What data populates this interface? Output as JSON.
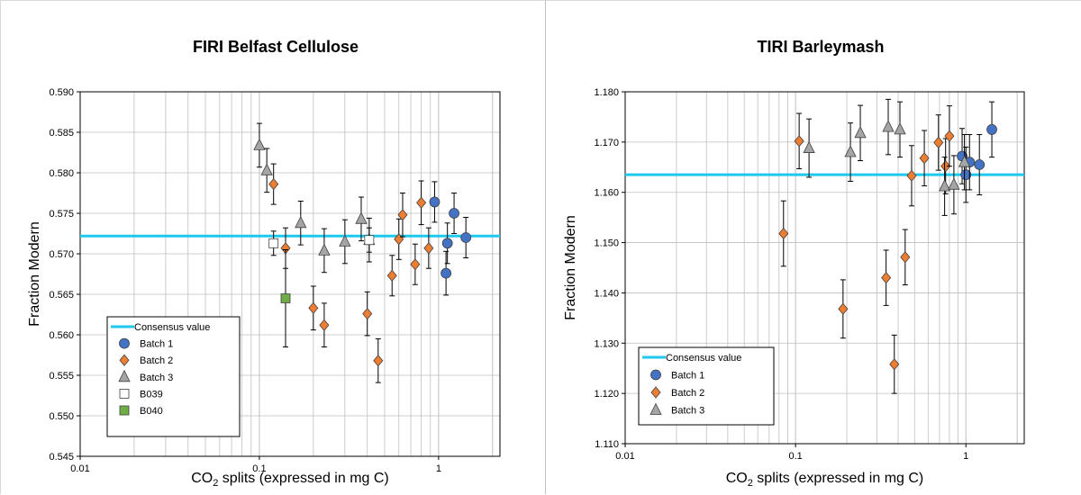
{
  "colors": {
    "consensus": "#1ec8ec",
    "batch1": "#4472c4",
    "batch2": "#ed7d31",
    "batch3": "#a5a5a5",
    "b039": "#ffffff",
    "b040": "#70ad47",
    "grid": "#bfbfbf"
  },
  "chart_data": [
    {
      "type": "scatter",
      "title": "FIRI Belfast Cellulose",
      "xlabel": "CO",
      "xlabel_sub": "2",
      "xlabel_rest": " splits (expressed in mg C)",
      "ylabel": "Fraction Modern",
      "xscale": "log",
      "xlim": [
        0.01,
        2.2
      ],
      "ylim": [
        0.545,
        0.59
      ],
      "xticks": [
        0.01,
        0.1,
        1
      ],
      "xtick_labels": [
        "0.01",
        "0.1",
        "1"
      ],
      "yticks": [
        0.545,
        0.55,
        0.555,
        0.56,
        0.565,
        0.57,
        0.575,
        0.58,
        0.585,
        0.59
      ],
      "ytick_labels": [
        "0.545",
        "0.550",
        "0.555",
        "0.560",
        "0.565",
        "0.570",
        "0.575",
        "0.580",
        "0.585",
        "0.590"
      ],
      "grid": true,
      "legend_position": "bottom-left",
      "consensus": {
        "name": "Consensus value",
        "value": 0.5722
      },
      "series": [
        {
          "name": "Batch 1",
          "marker": "circle",
          "color_key": "batch1",
          "points": [
            [
              0.95,
              0.5764,
              0.0025
            ],
            [
              1.1,
              0.5676,
              0.0027
            ],
            [
              1.12,
              0.5713,
              0.0025
            ],
            [
              1.22,
              0.575,
              0.0025
            ],
            [
              1.42,
              0.572,
              0.0025
            ]
          ]
        },
        {
          "name": "Batch 2",
          "marker": "diamond",
          "color_key": "batch2",
          "points": [
            [
              0.12,
              0.5786,
              0.0025
            ],
            [
              0.14,
              0.5707,
              0.0025
            ],
            [
              0.2,
              0.5633,
              0.0027
            ],
            [
              0.23,
              0.5612,
              0.0027
            ],
            [
              0.4,
              0.5626,
              0.0027
            ],
            [
              0.46,
              0.5568,
              0.0027
            ],
            [
              0.55,
              0.5673,
              0.0025
            ],
            [
              0.6,
              0.5718,
              0.0025
            ],
            [
              0.63,
              0.5748,
              0.0027
            ],
            [
              0.74,
              0.5687,
              0.0025
            ],
            [
              0.8,
              0.5763,
              0.0027
            ],
            [
              0.88,
              0.5707,
              0.0025
            ]
          ]
        },
        {
          "name": "Batch 3",
          "marker": "triangle",
          "color_key": "batch3",
          "points": [
            [
              0.1,
              0.5834,
              0.0027
            ],
            [
              0.11,
              0.5803,
              0.0027
            ],
            [
              0.17,
              0.5738,
              0.0027
            ],
            [
              0.23,
              0.5704,
              0.0027
            ],
            [
              0.3,
              0.5715,
              0.0027
            ],
            [
              0.37,
              0.5743,
              0.0027
            ],
            [
              0.41,
              0.5717,
              0.0027
            ]
          ]
        },
        {
          "name": "B039",
          "marker": "square",
          "color_key": "b039",
          "points": [
            [
              0.12,
              0.5713,
              0.0015
            ],
            [
              0.41,
              0.5717,
              0.0015
            ]
          ]
        },
        {
          "name": "B040",
          "marker": "square",
          "color_key": "b040",
          "points": [
            [
              0.14,
              0.5645,
              0.006
            ]
          ]
        }
      ]
    },
    {
      "type": "scatter",
      "title": "TIRI Barleymash",
      "xlabel": "CO",
      "xlabel_sub": "2",
      "xlabel_rest": " splits (expressed in mg C)",
      "ylabel": "Fraction Modern",
      "xscale": "log",
      "xlim": [
        0.01,
        2.2
      ],
      "ylim": [
        1.11,
        1.18
      ],
      "xticks": [
        0.01,
        0.1,
        1
      ],
      "xtick_labels": [
        "0.01",
        "0.1",
        "1"
      ],
      "yticks": [
        1.11,
        1.12,
        1.13,
        1.14,
        1.15,
        1.16,
        1.17,
        1.18
      ],
      "ytick_labels": [
        "1.110",
        "1.120",
        "1.130",
        "1.140",
        "1.150",
        "1.160",
        "1.170",
        "1.180"
      ],
      "grid": true,
      "legend_position": "bottom-left",
      "consensus": {
        "name": "Consensus value",
        "value": 1.1635
      },
      "series": [
        {
          "name": "Batch 1",
          "marker": "circle",
          "color_key": "batch1",
          "points": [
            [
              0.95,
              1.1672,
              0.0055
            ],
            [
              1.0,
              1.1635,
              0.0055
            ],
            [
              1.05,
              1.166,
              0.0055
            ],
            [
              1.2,
              1.1655,
              0.006
            ],
            [
              1.42,
              1.1725,
              0.0055
            ]
          ]
        },
        {
          "name": "Batch 2",
          "marker": "diamond",
          "color_key": "batch2",
          "points": [
            [
              0.085,
              1.1518,
              0.0065
            ],
            [
              0.105,
              1.1702,
              0.0055
            ],
            [
              0.19,
              1.1368,
              0.0058
            ],
            [
              0.34,
              1.143,
              0.0055
            ],
            [
              0.38,
              1.1258,
              0.0058
            ],
            [
              0.44,
              1.1471,
              0.0055
            ],
            [
              0.48,
              1.1633,
              0.006
            ],
            [
              0.57,
              1.1668,
              0.0055
            ],
            [
              0.69,
              1.1699,
              0.0055
            ],
            [
              0.76,
              1.1652,
              0.0055
            ],
            [
              0.8,
              1.1712,
              0.006
            ]
          ]
        },
        {
          "name": "Batch 3",
          "marker": "triangle",
          "color_key": "batch3",
          "points": [
            [
              0.12,
              1.1688,
              0.0058
            ],
            [
              0.21,
              1.168,
              0.0058
            ],
            [
              0.24,
              1.1718,
              0.0055
            ],
            [
              0.35,
              1.173,
              0.0055
            ],
            [
              0.41,
              1.1725,
              0.0055
            ],
            [
              0.75,
              1.1612,
              0.0058
            ],
            [
              0.85,
              1.1615,
              0.0058
            ],
            [
              0.98,
              1.166,
              0.0055
            ]
          ]
        }
      ]
    }
  ]
}
